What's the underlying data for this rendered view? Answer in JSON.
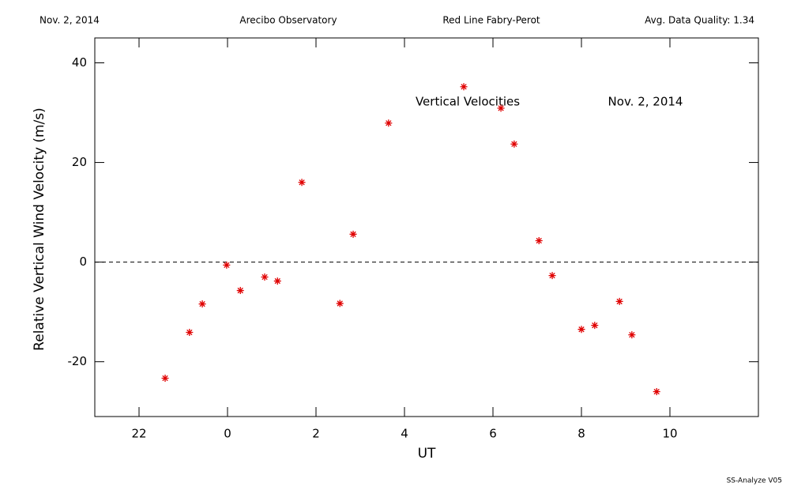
{
  "header": {
    "date": "Nov. 2, 2014",
    "site": "Arecibo Observatory",
    "instrument": "Red Line Fabry-Perot",
    "quality": "Avg. Data Quality: 1.34"
  },
  "footer": "SS-Analyze V05",
  "chart_data": {
    "type": "scatter",
    "title": "Vertical Velocities",
    "annotation": "Nov. 2, 2014",
    "x_label": "UT",
    "y_label": "Relative Vertical Wind Velocity (m/s)",
    "x": [
      -1.41,
      -0.86,
      -0.57,
      -0.02,
      0.29,
      0.84,
      1.13,
      1.68,
      2.54,
      2.84,
      3.64,
      5.34,
      6.18,
      6.48,
      7.04,
      7.34,
      8.0,
      8.3,
      8.86,
      9.14,
      9.7
    ],
    "values": [
      -23.3,
      -14.1,
      -8.4,
      -0.6,
      -5.7,
      -3.0,
      -3.8,
      16.0,
      -8.3,
      5.6,
      27.9,
      35.2,
      30.9,
      23.7,
      4.3,
      -2.7,
      -13.5,
      -12.7,
      -7.9,
      -14.6,
      -26.0
    ],
    "color": "#e00000",
    "xlim": [
      -3,
      12
    ],
    "xticks": [
      {
        "value": -2,
        "label": "22"
      },
      0,
      2,
      4,
      6,
      8,
      10
    ],
    "ylim": [
      -31,
      45
    ],
    "yticks": [
      -20,
      0,
      20,
      40
    ],
    "hline": 0
  }
}
